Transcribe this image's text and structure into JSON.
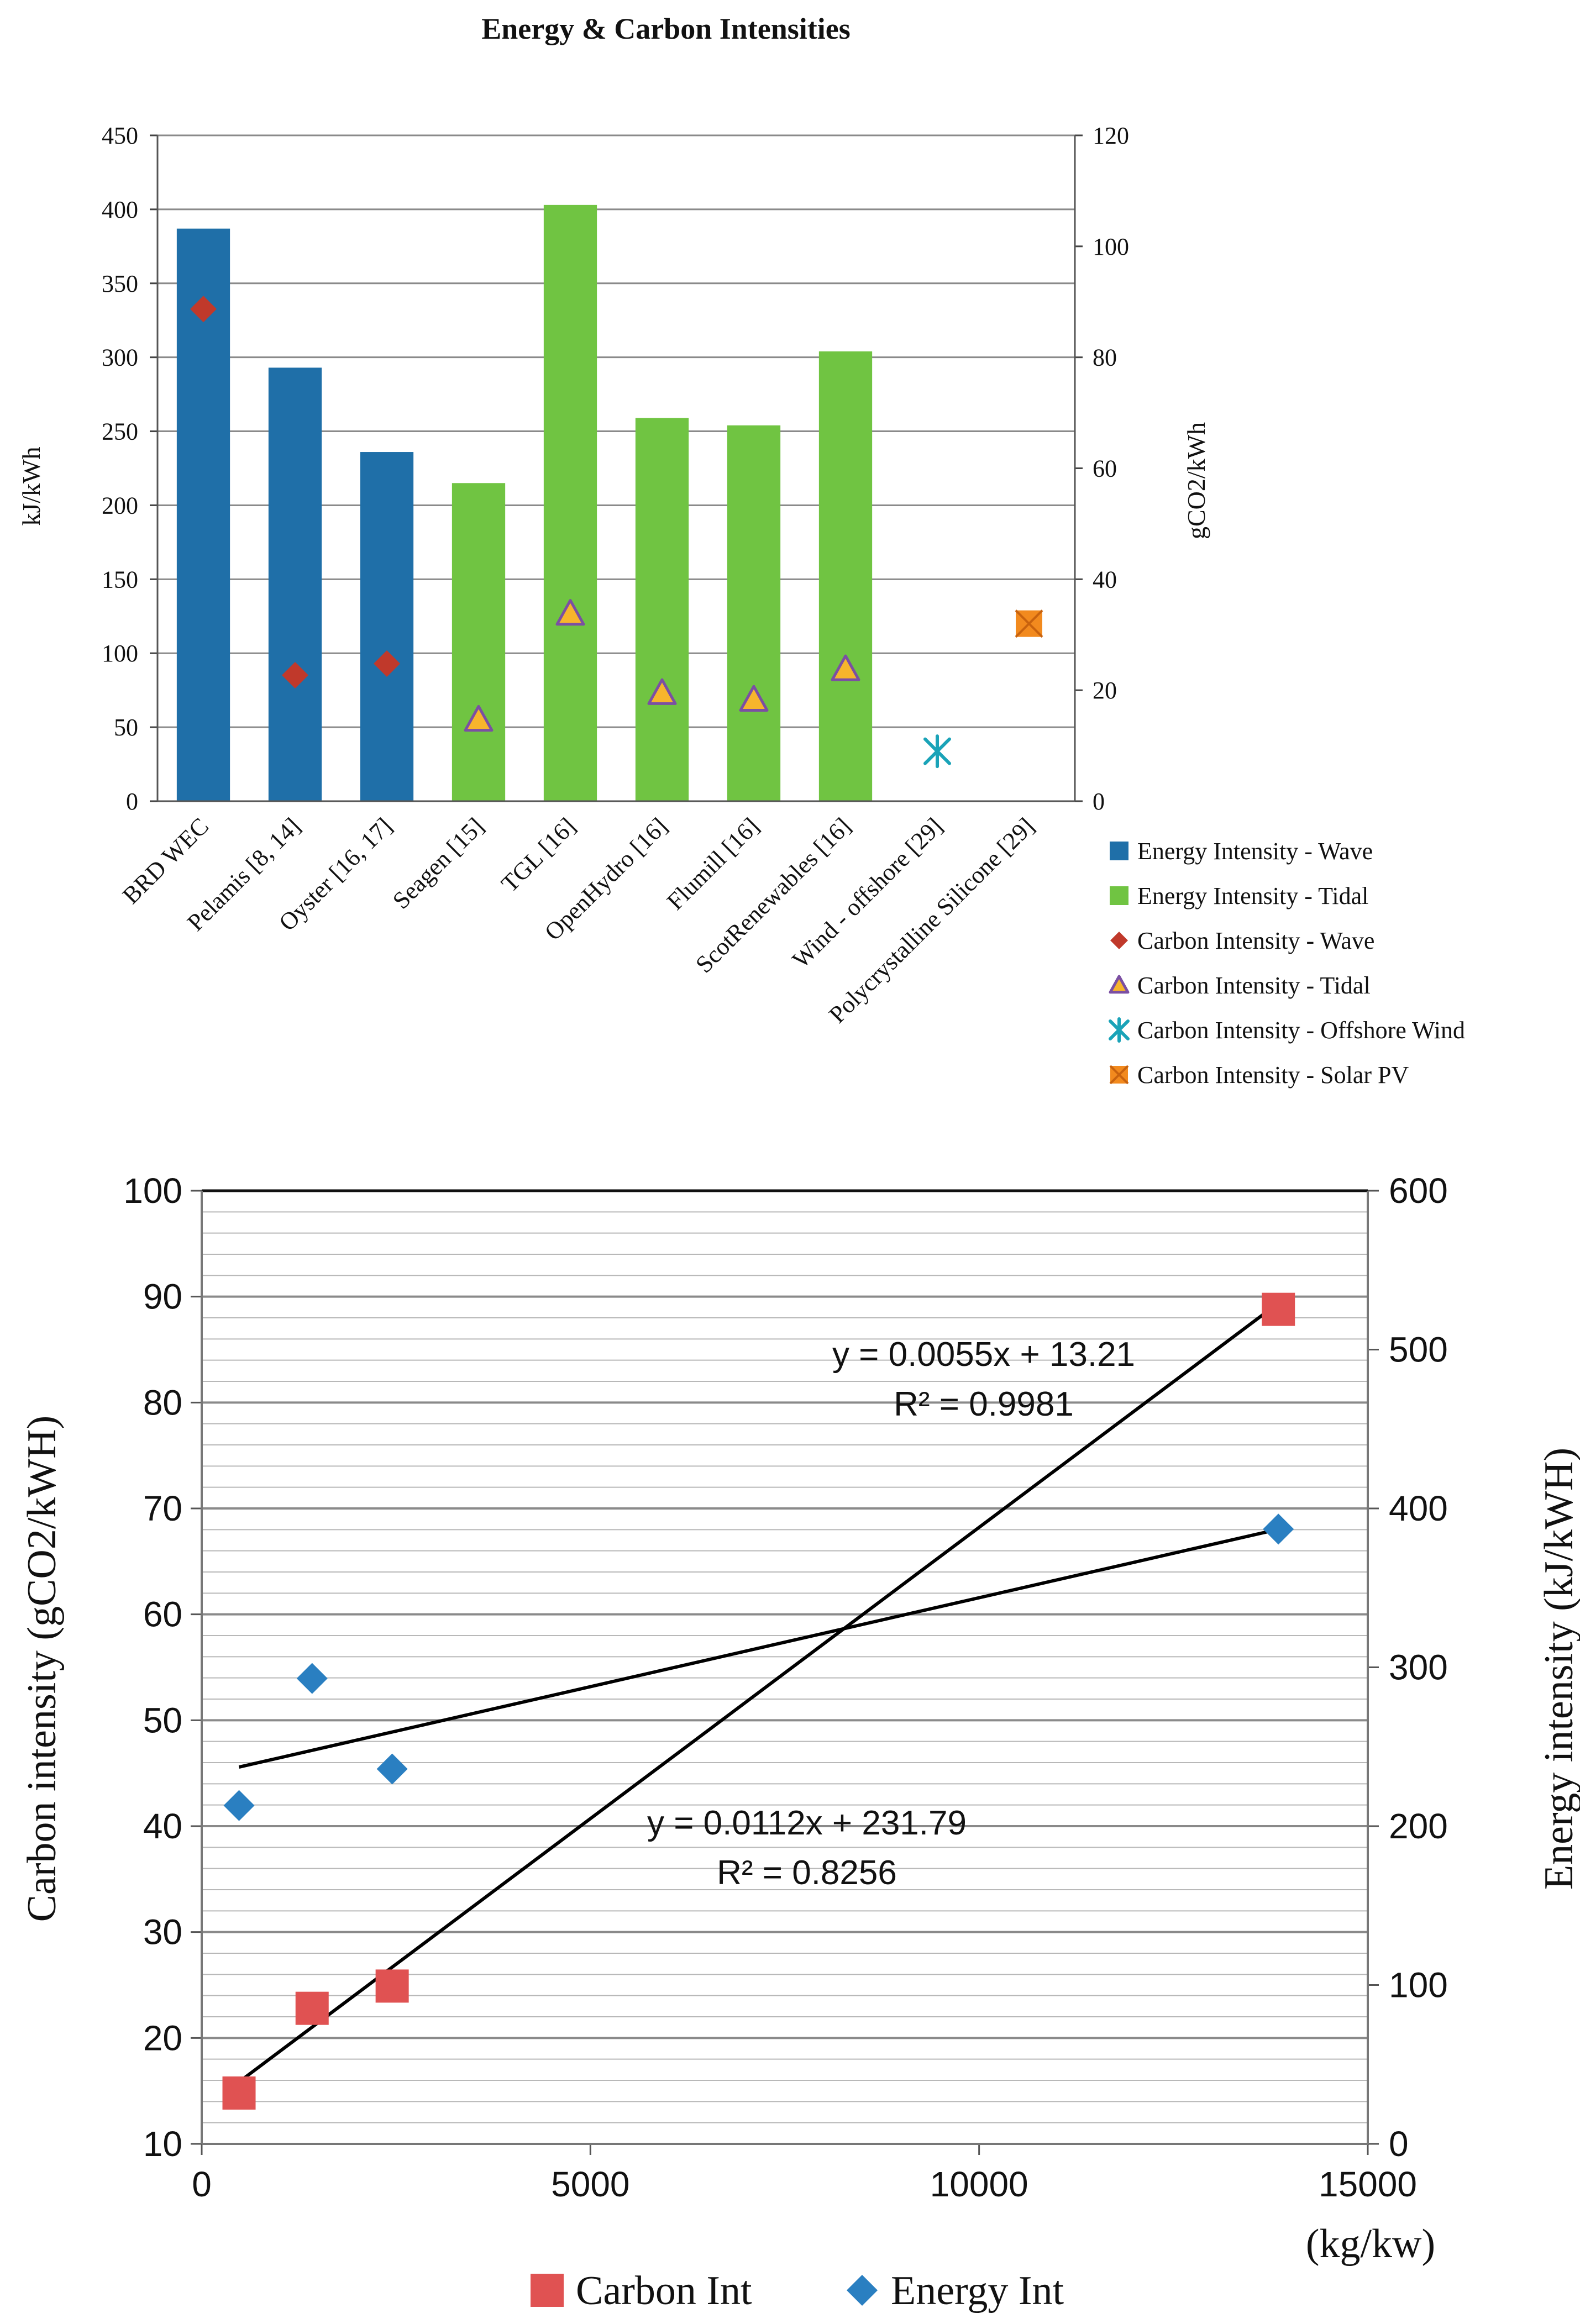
{
  "chart_data": [
    {
      "type": "bar",
      "title": "Energy & Carbon Intensities",
      "ylabel": "kJ/kWh",
      "y2label": "gCO2/kWh",
      "ylim": [
        0,
        450
      ],
      "y2lim": [
        0,
        120
      ],
      "yticks": [
        0,
        50,
        100,
        150,
        200,
        250,
        300,
        350,
        400,
        450
      ],
      "y2ticks": [
        0,
        20,
        40,
        60,
        80,
        100,
        120
      ],
      "grid": true,
      "legend_position": "bottom-right",
      "categories": [
        "BRD WEC",
        "Pelamis [8, 14]",
        "Oyster [16, 17]",
        "Seagen [15]",
        "TGL [16]",
        "OpenHydro [16]",
        "Flumill [16]",
        "ScotRenewables [16]",
        "Wind - offshore [29]",
        "Polycrystalline Silicone [29]"
      ],
      "series": [
        {
          "name": "Energy Intensity - Wave",
          "kind": "bar",
          "axis": "left",
          "color": "#1f6fa8",
          "values": [
            387,
            293,
            236,
            null,
            null,
            null,
            null,
            null,
            null,
            null
          ]
        },
        {
          "name": "Energy Intensity - Tidal",
          "kind": "bar",
          "axis": "left",
          "color": "#70c442",
          "values": [
            null,
            null,
            null,
            215,
            403,
            259,
            254,
            304,
            null,
            null
          ]
        },
        {
          "name": "Carbon Intensity - Wave",
          "kind": "marker",
          "marker": "diamond",
          "axis": "right",
          "color": "#c0392b",
          "values": [
            88.7,
            22.7,
            24.8,
            null,
            null,
            null,
            null,
            null,
            null,
            null
          ]
        },
        {
          "name": "Carbon Intensity - Tidal",
          "kind": "marker",
          "marker": "triangle",
          "axis": "right",
          "color": "#f7b52c",
          "stroke": "#7b4fa3",
          "values": [
            null,
            null,
            null,
            14.7,
            33.8,
            19.5,
            18.3,
            23.8,
            null,
            null
          ]
        },
        {
          "name": "Carbon Intensity - Offshore Wind",
          "kind": "marker",
          "marker": "asterisk",
          "axis": "right",
          "color": "#1aa3b8",
          "values": [
            null,
            null,
            null,
            null,
            null,
            null,
            null,
            null,
            9.0,
            null
          ]
        },
        {
          "name": "Carbon Intensity - Solar PV",
          "kind": "marker",
          "marker": "square-x",
          "axis": "right",
          "color": "#f28a1e",
          "values": [
            null,
            null,
            null,
            null,
            null,
            null,
            null,
            null,
            null,
            32.0
          ]
        }
      ]
    },
    {
      "type": "scatter",
      "title": "",
      "xlabel": "(kg/kw)",
      "ylabel": "Carbon intensity (gCO2/kWH)",
      "y2label": "Energy intensity (kJ/kWH)",
      "xlim": [
        0,
        15000
      ],
      "ylim": [
        10,
        100
      ],
      "y2lim": [
        0,
        600
      ],
      "xticks": [
        0,
        5000,
        10000,
        15000
      ],
      "yticks": [
        10,
        20,
        30,
        40,
        50,
        60,
        70,
        80,
        90,
        100
      ],
      "y2ticks": [
        0,
        100,
        200,
        300,
        400,
        500,
        600
      ],
      "grid": true,
      "legend_position": "bottom",
      "series": [
        {
          "name": "Carbon Int",
          "axis": "left",
          "marker": "square",
          "color": "#e05252",
          "x": [
            480,
            1420,
            2450,
            13850
          ],
          "y": [
            14.8,
            22.8,
            24.9,
            88.8
          ],
          "trendline": {
            "x": [
              480,
              13850
            ],
            "y": [
              15.85,
              89.39
            ],
            "equation": "y = 0.0055x + 13.21",
            "r2": "R² = 0.9981"
          }
        },
        {
          "name": "Energy Int",
          "axis": "right",
          "marker": "diamond",
          "color": "#2a7fc1",
          "x": [
            480,
            1420,
            2450,
            13850
          ],
          "y": [
            213,
            293,
            236,
            387
          ],
          "trendline": {
            "x": [
              480,
              13850
            ],
            "y": [
              237.2,
              386.9
            ],
            "equation": "y = 0.0112x + 231.79",
            "r2": "R² = 0.8256"
          }
        }
      ]
    }
  ]
}
